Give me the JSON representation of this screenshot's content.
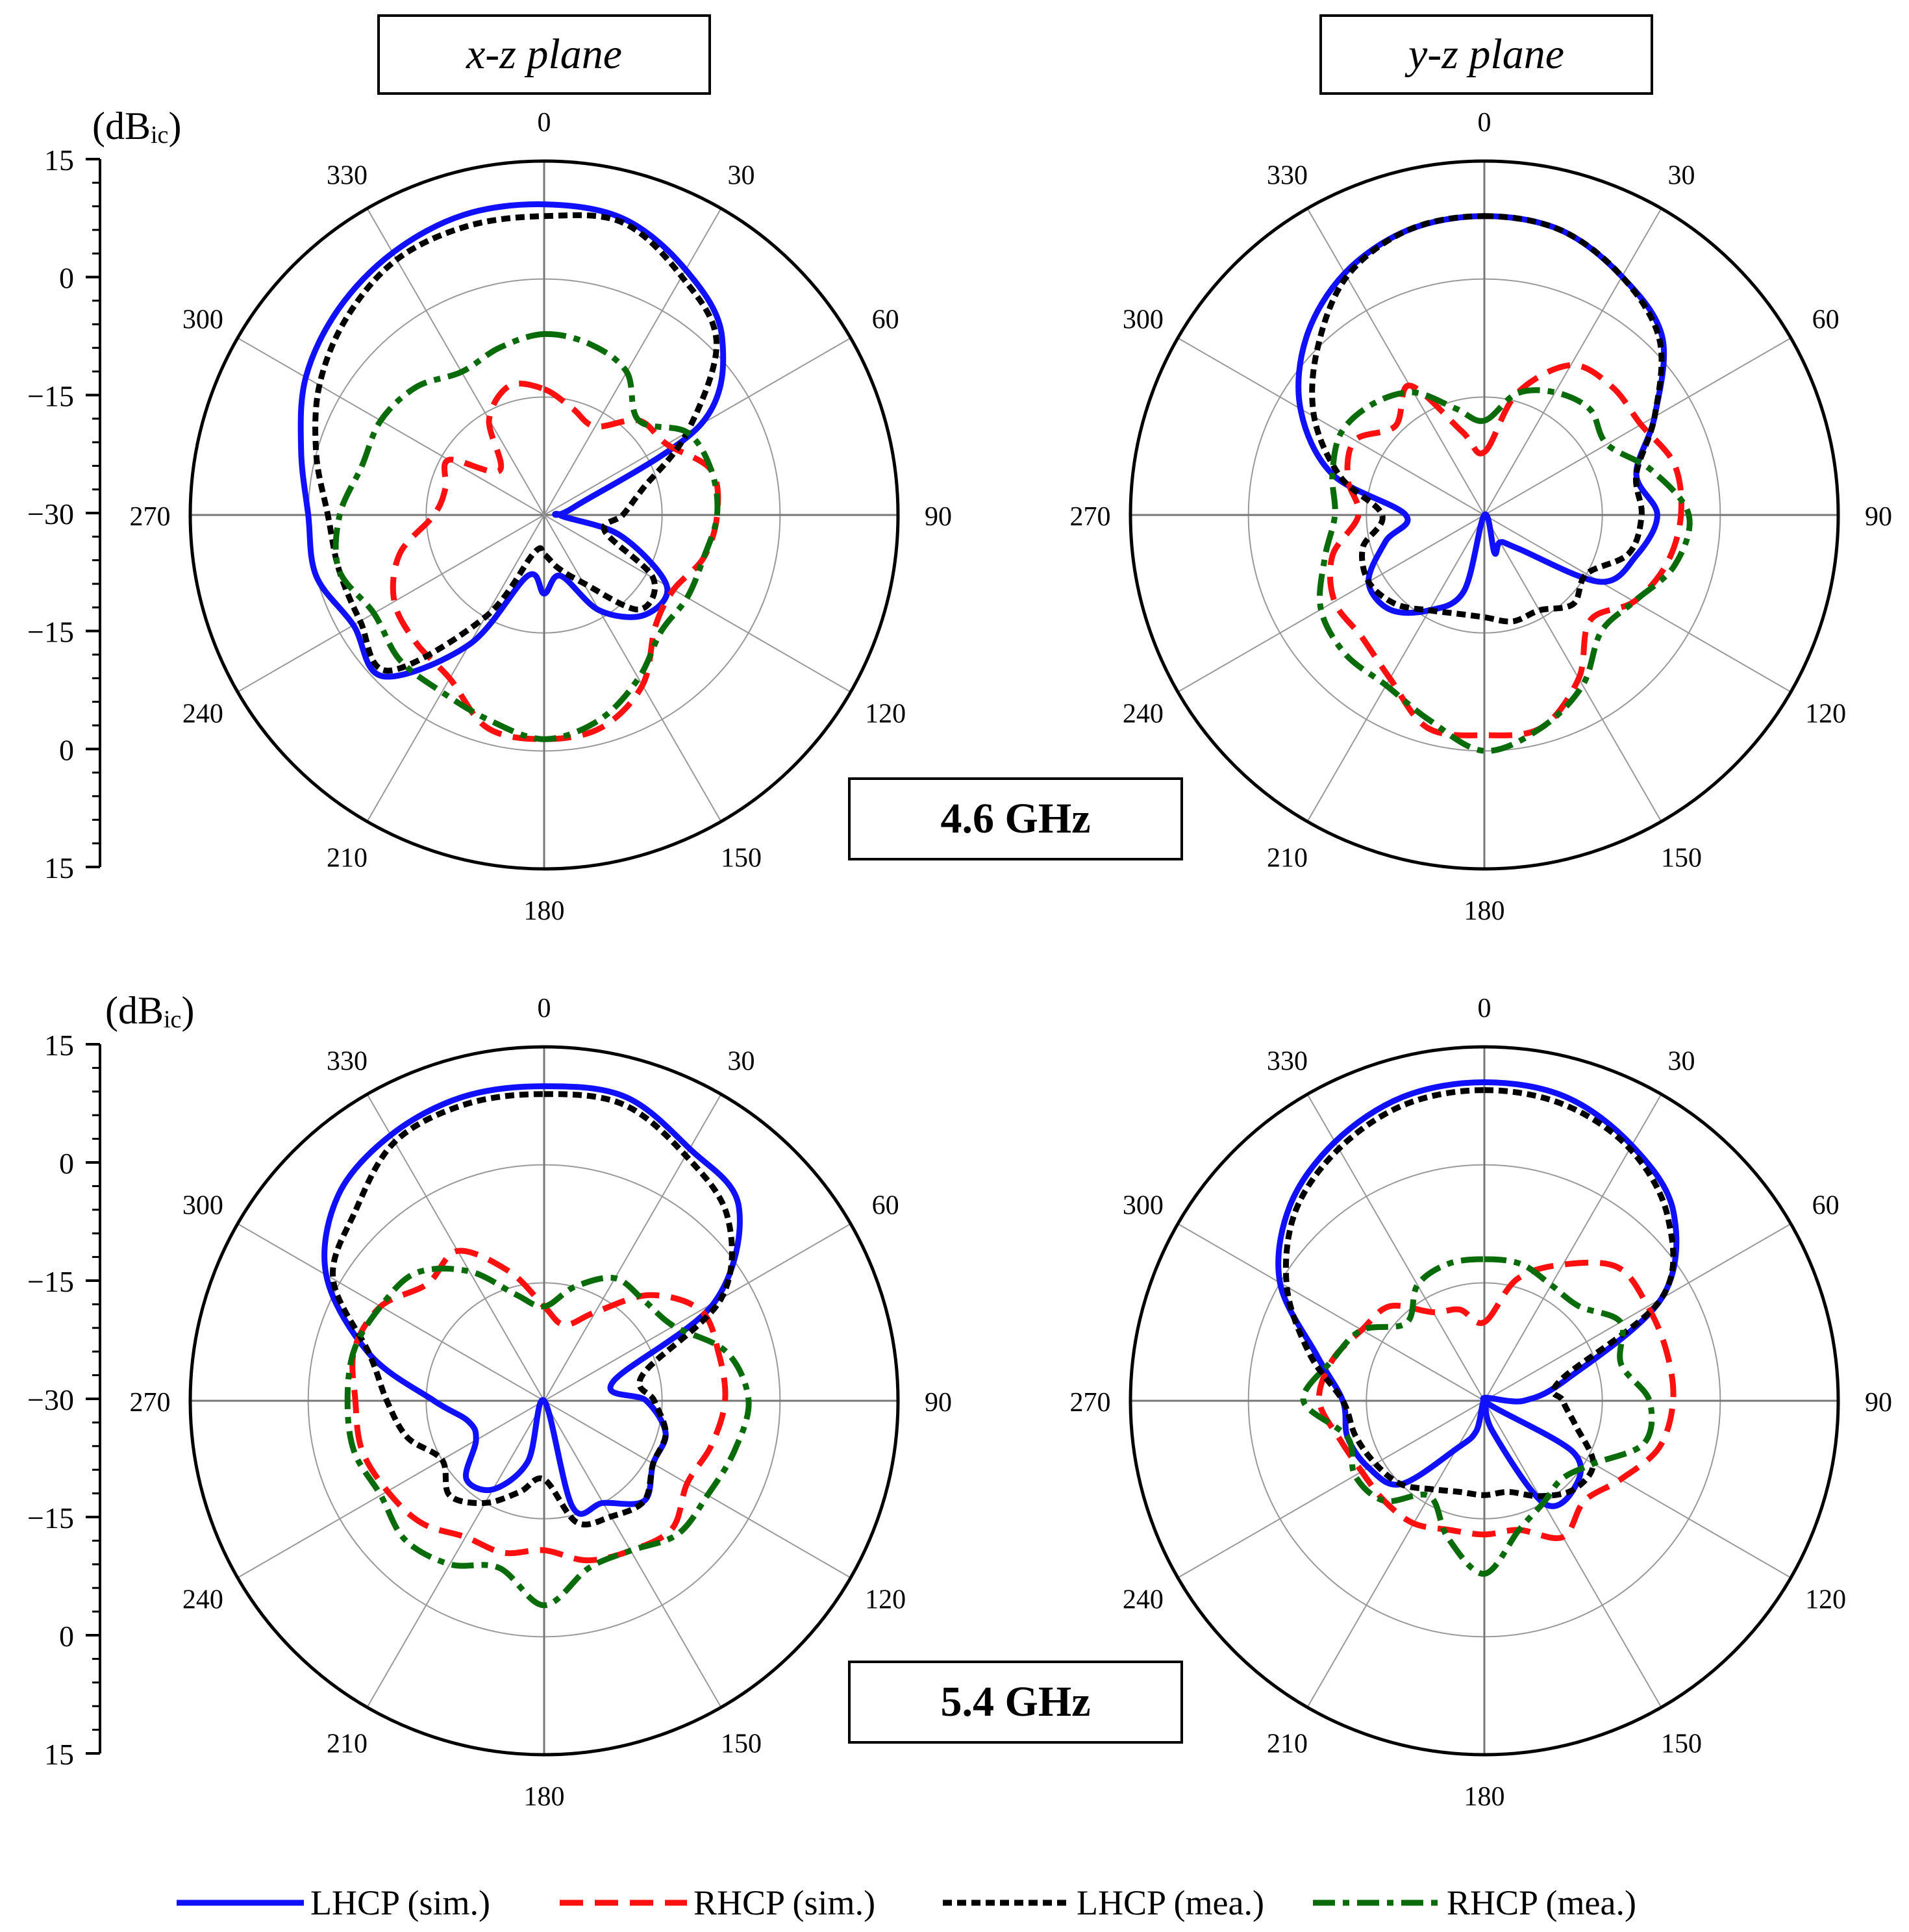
{
  "figure": {
    "plane_titles": [
      "x-z plane",
      "y-z plane"
    ],
    "frequency_labels": [
      "4.6 GHz",
      "5.4 GHz"
    ],
    "unit_label": "(dB",
    "unit_subscript": "ic",
    "unit_close": ")"
  },
  "colors": {
    "lhcp_sim": "#1010ff",
    "rhcp_sim": "#ff1010",
    "lhcp_mea": "#000000",
    "rhcp_mea": "#0a6b0a"
  },
  "legend": [
    {
      "label": "LHCP (sim.)",
      "style": "solid"
    },
    {
      "label": "RHCP (sim.)",
      "style": "dashed"
    },
    {
      "label": "LHCP (mea.)",
      "style": "dotted"
    },
    {
      "label": "RHCP (mea.)",
      "style": "dashdot"
    }
  ],
  "chart_data": [
    {
      "type": "polar",
      "title": "x-z plane",
      "frequency": "4.6 GHz",
      "radial_range_db": [
        -30,
        15
      ],
      "radial_tick_labels": [
        "15",
        "0",
        "-15",
        "-30",
        "-15",
        "0",
        "15"
      ],
      "angle_tick_labels": [
        "0",
        "30",
        "60",
        "90",
        "120",
        "150",
        "180",
        "210",
        "240",
        "270",
        "300",
        "330"
      ],
      "theta_deg": [
        0,
        15,
        30,
        45,
        60,
        75,
        90,
        105,
        120,
        135,
        150,
        165,
        180,
        195,
        210,
        225,
        240,
        255,
        270,
        285,
        300,
        315,
        330,
        345
      ],
      "series": [
        {
          "name": "LHCP (sim.)",
          "values": [
            9.5,
            9,
            6,
            2,
            -7,
            -26,
            -28,
            -20,
            -12,
            -12,
            -16,
            -22,
            -20,
            -22,
            -11,
            -1,
            -2,
            0,
            0,
            2,
            5,
            7,
            8.5,
            9.5
          ]
        },
        {
          "name": "RHCP (sim.)",
          "values": [
            -14,
            -16,
            -17,
            -13,
            -12,
            -8,
            -8,
            -9,
            -11,
            -10,
            -5,
            -2,
            -1.5,
            -2,
            -6,
            -7,
            -8,
            -11,
            -16,
            -17,
            -16,
            -22,
            -16,
            -13
          ]
        },
        {
          "name": "LHCP (mea.)",
          "values": [
            8,
            8.5,
            5,
            1,
            -9,
            -17,
            -20,
            -22,
            -14,
            -13,
            -20,
            -23,
            -25,
            -25,
            -15,
            -2,
            -3,
            -3,
            -2.5,
            0,
            3,
            5.5,
            7.5,
            8
          ]
        },
        {
          "name": "RHCP (mea.)",
          "values": [
            -7,
            -7.5,
            -9,
            -13,
            -9,
            -8,
            -8,
            -9,
            -9,
            -9,
            -6,
            -3,
            -1.5,
            -3,
            -4,
            -4,
            -5,
            -3,
            -4,
            -6,
            -6,
            -7,
            -9,
            -8
          ]
        }
      ]
    },
    {
      "type": "polar",
      "title": "y-z plane",
      "frequency": "4.6 GHz",
      "radial_range_db": [
        -30,
        15
      ],
      "radial_tick_labels": [
        "15",
        "0",
        "-15",
        "-30",
        "-15",
        "0",
        "15"
      ],
      "angle_tick_labels": [
        "0",
        "30",
        "60",
        "90",
        "120",
        "150",
        "180",
        "210",
        "240",
        "270",
        "300",
        "330"
      ],
      "theta_deg": [
        0,
        15,
        30,
        45,
        60,
        75,
        90,
        105,
        120,
        135,
        150,
        165,
        180,
        195,
        210,
        225,
        240,
        255,
        270,
        285,
        300,
        315,
        330,
        345
      ],
      "series": [
        {
          "name": "LHCP (sim.)",
          "values": [
            8,
            7.5,
            5,
            2,
            -5,
            -10,
            -8,
            -10,
            -13,
            -24,
            -26,
            -25,
            -30,
            -20,
            -16,
            -13,
            -13,
            -17,
            -20,
            -10,
            -3,
            2,
            5.5,
            7.5
          ]
        },
        {
          "name": "RHCP (sim.)",
          "values": [
            -22,
            -14,
            -8,
            -7,
            -7,
            -5,
            -5,
            -6,
            -8,
            -11,
            -6,
            -2,
            -2,
            -2,
            -6,
            -8,
            -8,
            -10,
            -14,
            -12,
            -11,
            -14,
            -11,
            -19
          ]
        },
        {
          "name": "LHCP (mea.)",
          "values": [
            8,
            7.5,
            5,
            1.5,
            -5,
            -10,
            -10,
            -11,
            -15,
            -14,
            -16,
            -16,
            -17,
            -17,
            -16,
            -14,
            -13,
            -14,
            -17,
            -11,
            -5,
            0,
            5,
            7.5
          ]
        },
        {
          "name": "RHCP (mea.)",
          "values": [
            -18,
            -14,
            -12,
            -11,
            -12,
            -8,
            -4,
            -5,
            -8,
            -9,
            -5,
            -2,
            0,
            -3,
            -5,
            -5,
            -6,
            -9,
            -11,
            -10,
            -9,
            -10,
            -12,
            -16
          ]
        }
      ]
    },
    {
      "type": "polar",
      "title": "x-z plane",
      "frequency": "5.4 GHz",
      "radial_range_db": [
        -30,
        15
      ],
      "radial_tick_labels": [
        "15",
        "0",
        "-15",
        "-30",
        "-15",
        "0",
        "15"
      ],
      "angle_tick_labels": [
        "0",
        "30",
        "60",
        "90",
        "120",
        "150",
        "180",
        "210",
        "240",
        "270",
        "300",
        "330"
      ],
      "theta_deg": [
        0,
        15,
        30,
        45,
        60,
        75,
        90,
        105,
        120,
        135,
        150,
        165,
        180,
        195,
        210,
        225,
        240,
        255,
        270,
        285,
        300,
        315,
        330,
        345
      ],
      "series": [
        {
          "name": "LHCP (sim.)",
          "values": [
            10,
            10,
            7,
            5,
            -5,
            -21,
            -17,
            -14,
            -14,
            -12,
            -15,
            -16,
            -30,
            -22,
            -17,
            -16,
            -20,
            -20,
            -16,
            -7,
            2,
            7,
            9,
            10
          ]
        },
        {
          "name": "RHCP (sim.)",
          "values": [
            -18,
            -20,
            -17,
            -11,
            -7,
            -7,
            -7,
            -8,
            -9,
            -7,
            -8,
            -9,
            -11,
            -10,
            -10,
            -8,
            -7,
            -6,
            -6,
            -5,
            -6,
            -9,
            -8,
            -13
          ]
        },
        {
          "name": "LHCP (mea.)",
          "values": [
            9,
            9,
            6,
            3,
            -4,
            -17,
            -16,
            -14,
            -14,
            -12,
            -13,
            -14,
            -20,
            -18,
            -15,
            -13,
            -15,
            -12,
            -10,
            -7,
            1,
            4,
            8,
            9
          ]
        },
        {
          "name": "RHCP (mea.)",
          "values": [
            -18,
            -15,
            -12,
            -12,
            -11,
            -6,
            -4,
            -5,
            -6,
            -6,
            -8,
            -8,
            -4,
            -8,
            -6,
            -5,
            -6,
            -5,
            -5,
            -5,
            -6,
            -7,
            -11,
            -16
          ]
        }
      ]
    },
    {
      "type": "polar",
      "title": "y-z plane",
      "frequency": "5.4 GHz",
      "radial_range_db": [
        -30,
        15
      ],
      "radial_tick_labels": [
        "15",
        "0",
        "-15",
        "-30",
        "-15",
        "0",
        "15"
      ],
      "angle_tick_labels": [
        "0",
        "30",
        "60",
        "90",
        "120",
        "150",
        "180",
        "210",
        "240",
        "270",
        "300",
        "330"
      ],
      "theta_deg": [
        0,
        15,
        30,
        45,
        60,
        75,
        90,
        105,
        120,
        135,
        150,
        165,
        180,
        195,
        210,
        225,
        240,
        255,
        270,
        285,
        300,
        315,
        330,
        345
      ],
      "series": [
        {
          "name": "LHCP (sim.)",
          "values": [
            10.5,
            10,
            7.5,
            4,
            -4,
            -19,
            -25,
            -30,
            -17,
            -14,
            -15,
            -26,
            -30,
            -26,
            -23,
            -15,
            -13,
            -12,
            -12,
            -8,
            0,
            5,
            8,
            10
          ]
        },
        {
          "name": "RHCP (sim.)",
          "values": [
            -20,
            -14,
            -10,
            -6,
            -6,
            -6,
            -6,
            -7,
            -10,
            -12,
            -10,
            -13,
            -13,
            -13,
            -12,
            -12,
            -12,
            -11,
            -9,
            -10,
            -12,
            -13,
            -17,
            -18
          ]
        },
        {
          "name": "LHCP (mea.)",
          "values": [
            9.5,
            9,
            7,
            3,
            -4,
            -20,
            -20,
            -18,
            -14,
            -14,
            -16,
            -18,
            -18,
            -18,
            -17,
            -15,
            -14,
            -13,
            -12,
            -7,
            -1,
            4,
            7,
            9
          ]
        },
        {
          "name": "RHCP (mea.)",
          "values": [
            -12,
            -12,
            -13,
            -13,
            -10,
            -12,
            -9,
            -9,
            -14,
            -16,
            -15,
            -13,
            -8,
            -12,
            -16,
            -12,
            -11,
            -12,
            -7,
            -10,
            -12,
            -16,
            -13,
            -12
          ]
        }
      ]
    }
  ]
}
